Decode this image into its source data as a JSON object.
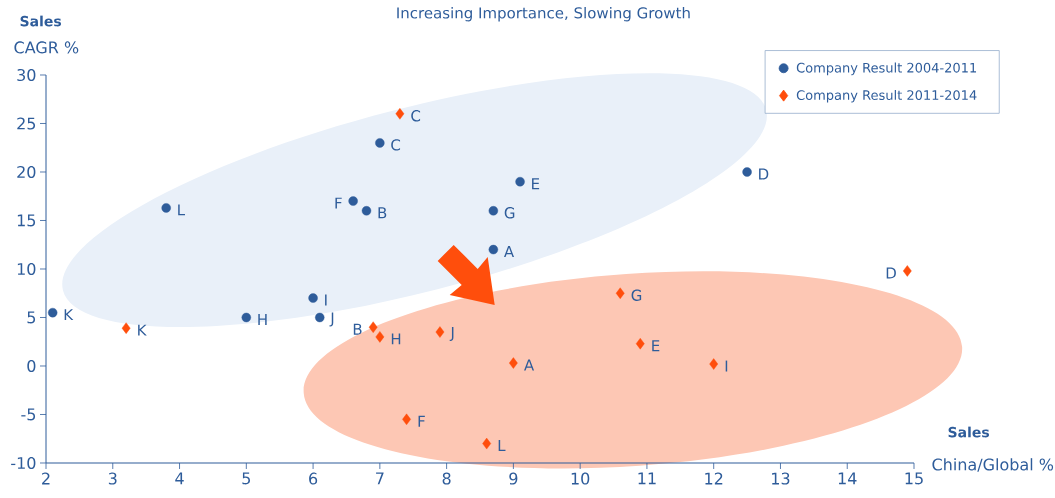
{
  "chart_data": {
    "type": "scatter",
    "title": "Increasing Importance, Slowing Growth",
    "xlabel": "China/Global %",
    "ylabel": "CAGR %",
    "xlim": [
      2,
      15
    ],
    "xticks": [
      2,
      3,
      4,
      5,
      6,
      7,
      8,
      9,
      10,
      11,
      12,
      13,
      14,
      15
    ],
    "ylim": [
      -10,
      30
    ],
    "yticks": [
      -10,
      -5,
      0,
      5,
      10,
      15,
      20,
      25,
      30
    ],
    "grid": false,
    "legend": "top right",
    "series": [
      {
        "name": "Company Result 2004-2011",
        "color": "#2e5c9a",
        "marker": "circle",
        "x": [
          8.7,
          6.8,
          7.0,
          12.5,
          9.1,
          6.6,
          8.7,
          5.0,
          6.0,
          6.1,
          2.1,
          3.8
        ],
        "values": [
          12,
          16,
          23,
          20,
          19,
          17,
          16,
          5,
          7,
          5,
          5.5,
          16.3
        ]
      },
      {
        "name": "Company Result 2011-2014",
        "color": "#ff4e0c",
        "marker": "diamond",
        "x": [
          9.0,
          6.9,
          7.3,
          14.9,
          10.9,
          7.4,
          10.6,
          7.0,
          12.0,
          7.9,
          3.2,
          8.6
        ],
        "values": [
          0.3,
          4,
          26,
          9.8,
          2.3,
          -5.5,
          7.5,
          3,
          0.2,
          3.5,
          3.9,
          -8
        ]
      }
    ],
    "annotations": [
      "Sales",
      "Sales",
      {
        "text": "A",
        "x": 8.7,
        "y": 12
      },
      {
        "text": "B",
        "x": 6.8,
        "y": 16
      },
      {
        "text": "C",
        "x": 7.0,
        "y": 23
      },
      {
        "text": "D",
        "x": 12.5,
        "y": 20
      },
      {
        "text": "E",
        "x": 9.1,
        "y": 19
      },
      {
        "text": "F",
        "x": 6.6,
        "y": 17
      },
      {
        "text": "G",
        "x": 8.7,
        "y": 16
      },
      {
        "text": "H",
        "x": 5.0,
        "y": 5
      },
      {
        "text": "I",
        "x": 6.0,
        "y": 7
      },
      {
        "text": "J",
        "x": 6.1,
        "y": 5
      },
      {
        "text": "K",
        "x": 2.1,
        "y": 5.5
      },
      {
        "text": "L",
        "x": 3.8,
        "y": 16.3
      },
      {
        "text": "A",
        "x": 9.0,
        "y": 0.3
      },
      {
        "text": "B",
        "x": 6.9,
        "y": 4
      },
      {
        "text": "C",
        "x": 7.3,
        "y": 26
      },
      {
        "text": "D",
        "x": 14.9,
        "y": 9.8
      },
      {
        "text": "E",
        "x": 10.9,
        "y": 2.3
      },
      {
        "text": "F",
        "x": 7.4,
        "y": -5.5
      },
      {
        "text": "G",
        "x": 10.6,
        "y": 7.5
      },
      {
        "text": "H",
        "x": 7.0,
        "y": 3
      },
      {
        "text": "I",
        "x": 12.0,
        "y": 0.2
      },
      {
        "text": "J",
        "x": 7.9,
        "y": 3.5
      },
      {
        "text": "K",
        "x": 3.2,
        "y": 3.9
      },
      {
        "text": "L",
        "x": 8.6,
        "y": -8
      }
    ]
  }
}
